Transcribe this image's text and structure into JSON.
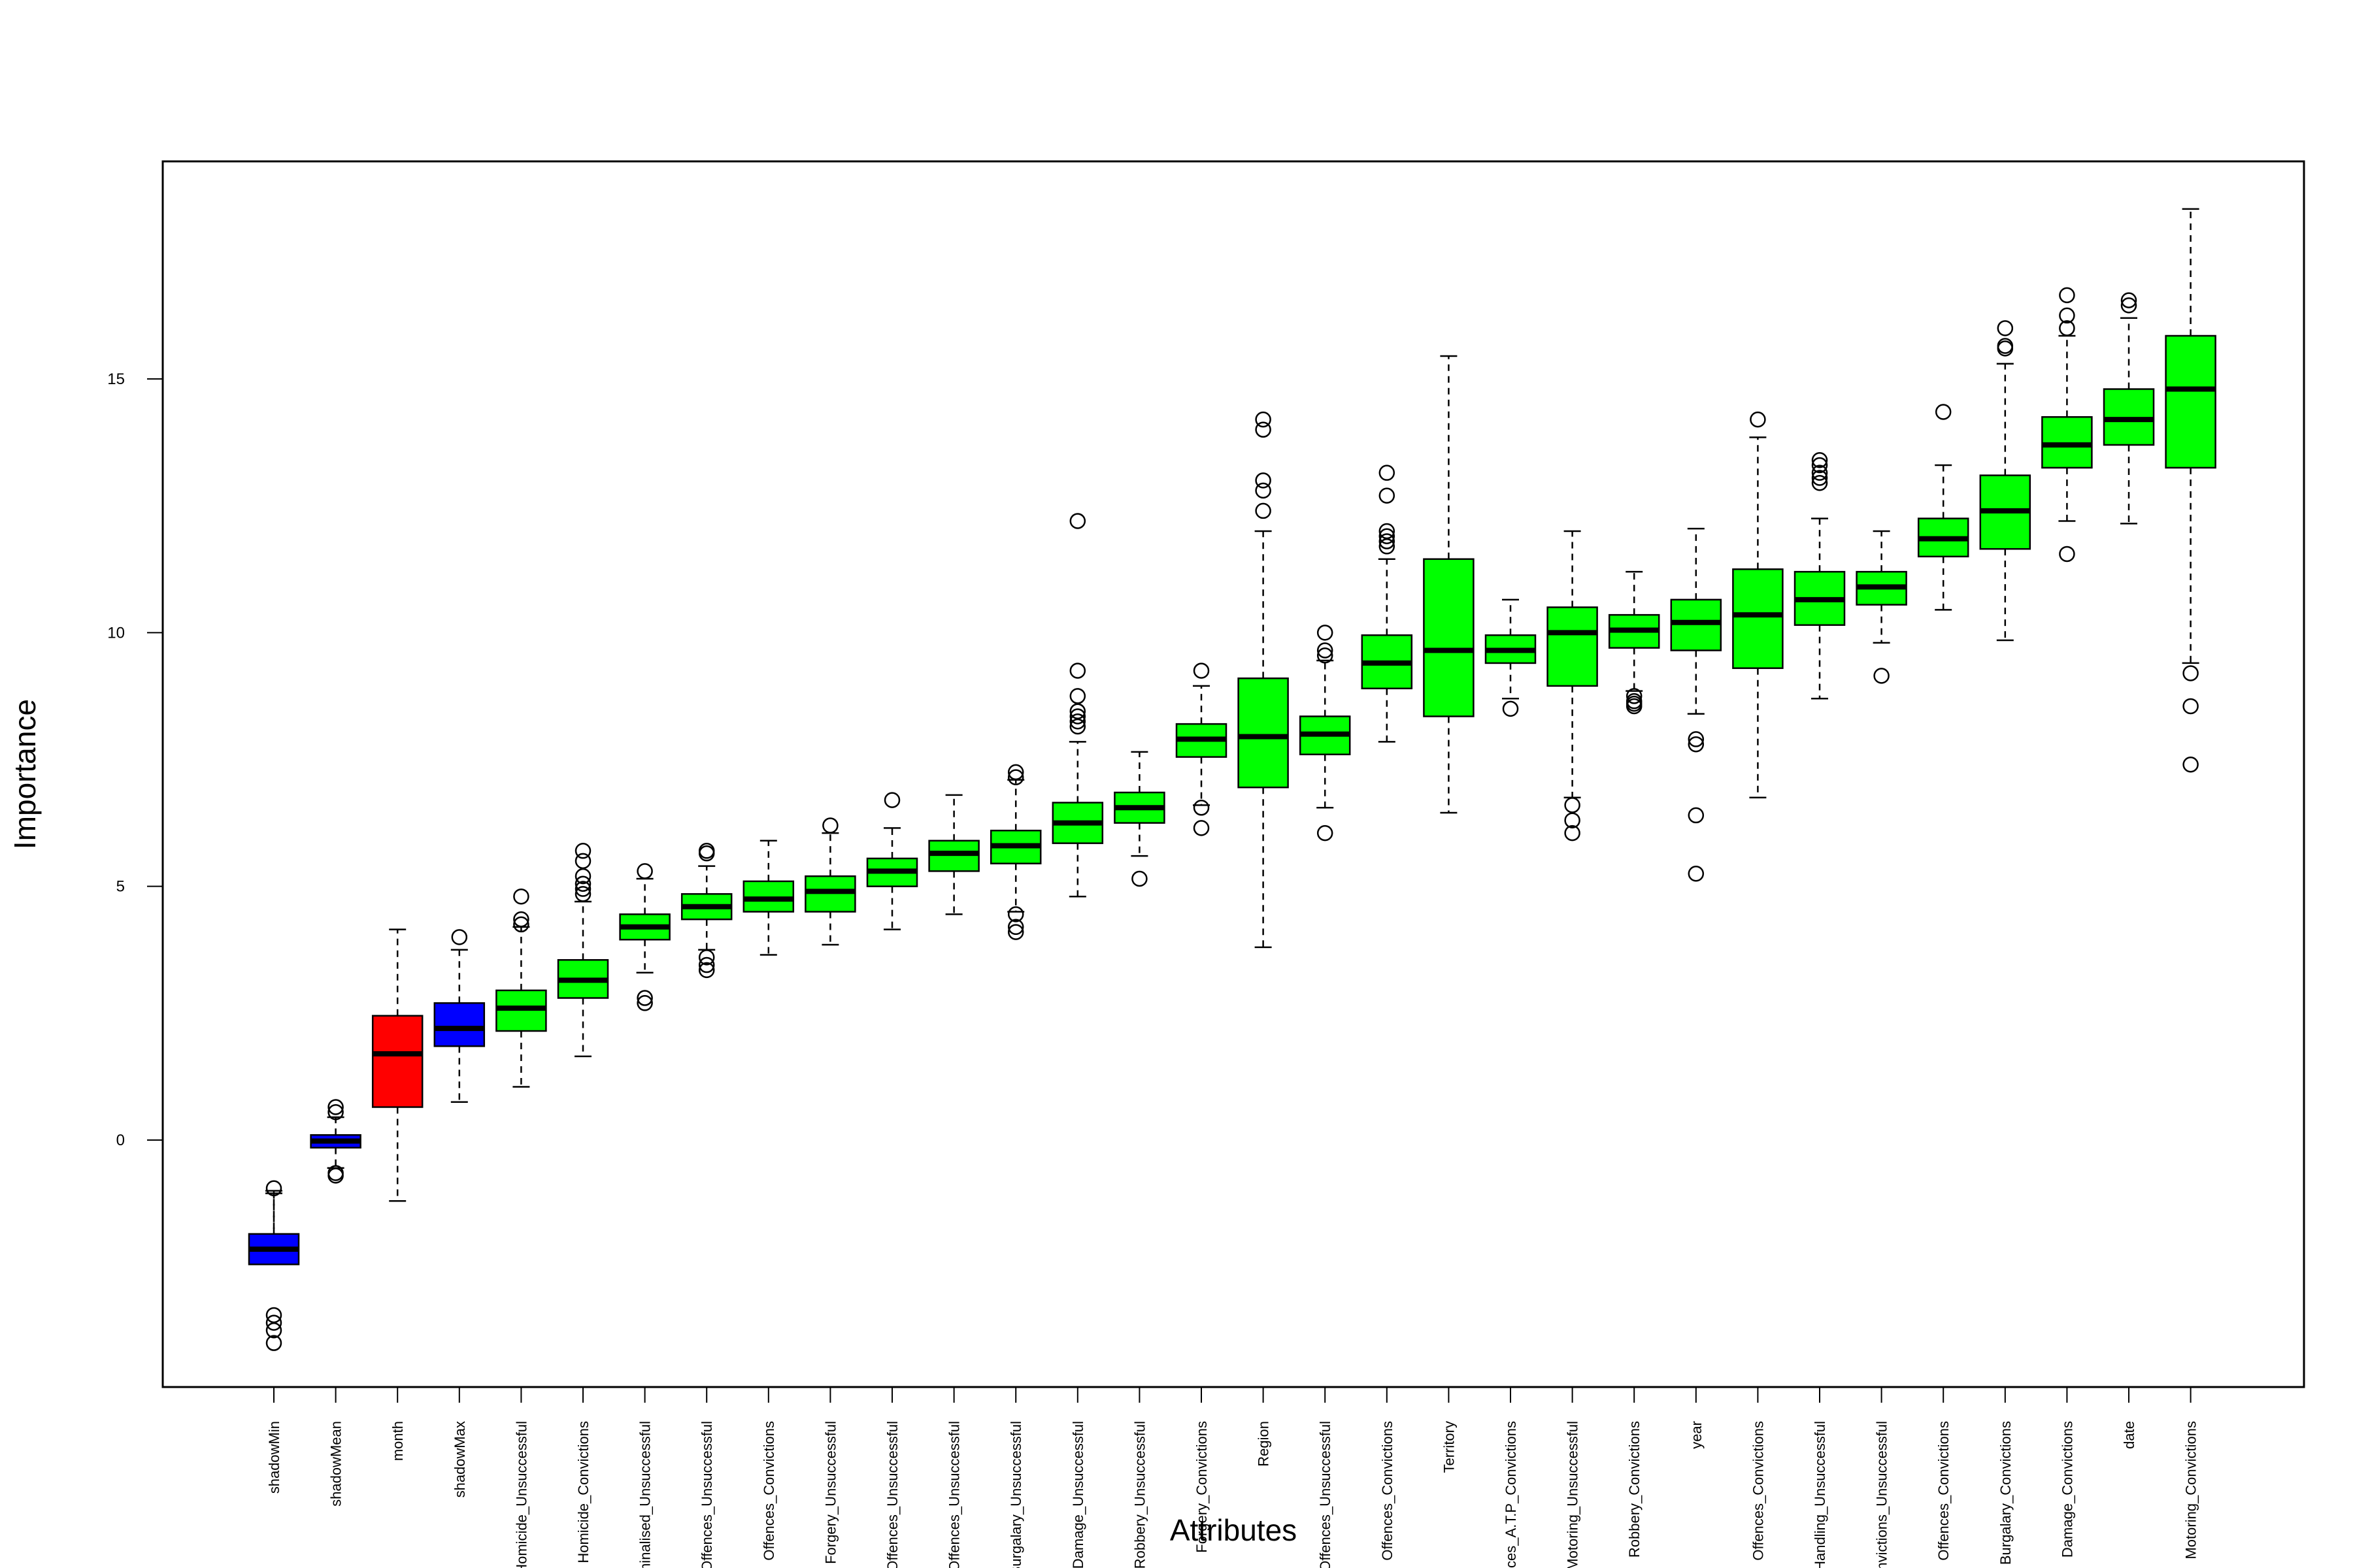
{
  "chart_data": {
    "type": "boxplot",
    "xlabel": "Attributes",
    "ylabel": "Importance",
    "ylim": [
      -5,
      19
    ],
    "yticks": [
      0,
      5,
      10,
      15
    ],
    "colors": {
      "shadow": "#0000ff",
      "rejected": "#ff0000",
      "confirmed": "#00ff00"
    },
    "boxes": [
      {
        "label": "shadowMin",
        "status": "shadow",
        "lower": -1.0,
        "q1": -2.45,
        "median": -2.15,
        "q3": -1.85,
        "upper": -1.05,
        "outliers": [
          -0.95,
          -3.45,
          -3.6,
          -3.75,
          -4.0
        ]
      },
      {
        "label": "shadowMean",
        "status": "shadow",
        "lower": -0.55,
        "q1": -0.15,
        "median": -0.02,
        "q3": 0.1,
        "upper": 0.45,
        "outliers": [
          0.55,
          0.65,
          -0.65,
          -0.7
        ]
      },
      {
        "label": "month",
        "status": "rejected",
        "lower": -1.2,
        "q1": 0.65,
        "median": 1.7,
        "q3": 2.45,
        "upper": 4.15,
        "outliers": []
      },
      {
        "label": "shadowMax",
        "status": "shadow",
        "lower": 0.75,
        "q1": 1.85,
        "median": 2.2,
        "q3": 2.7,
        "upper": 3.75,
        "outliers": [
          4.0
        ]
      },
      {
        "label": "Homicide_Unsuccessful",
        "status": "confirmed",
        "lower": 1.05,
        "q1": 2.15,
        "median": 2.6,
        "q3": 2.95,
        "upper": 4.2,
        "outliers": [
          4.25,
          4.35,
          4.8
        ]
      },
      {
        "label": "Homicide_Convictions",
        "status": "confirmed",
        "lower": 1.65,
        "q1": 2.8,
        "median": 3.15,
        "q3": 3.55,
        "upper": 4.7,
        "outliers": [
          4.85,
          4.95,
          5.05,
          5.2,
          5.5,
          5.7
        ]
      },
      {
        "label": "Criminalised_Unsuccessful",
        "status": "confirmed",
        "lower": 3.3,
        "q1": 3.95,
        "median": 4.2,
        "q3": 4.45,
        "upper": 5.15,
        "outliers": [
          2.7,
          2.8,
          5.3
        ]
      },
      {
        "label": "Offences_Unsuccessful",
        "status": "confirmed",
        "lower": 3.75,
        "q1": 4.35,
        "median": 4.6,
        "q3": 4.85,
        "upper": 5.4,
        "outliers": [
          3.35,
          3.45,
          3.6,
          5.65,
          5.7
        ]
      },
      {
        "label": "Offences_Convictions",
        "status": "confirmed",
        "lower": 3.65,
        "q1": 4.5,
        "median": 4.75,
        "q3": 5.1,
        "upper": 5.9,
        "outliers": []
      },
      {
        "label": "Forgery_Unsuccessful",
        "status": "confirmed",
        "lower": 3.85,
        "q1": 4.5,
        "median": 4.9,
        "q3": 5.2,
        "upper": 6.05,
        "outliers": [
          6.2
        ]
      },
      {
        "label": "Offences_Unsuccessful",
        "status": "confirmed",
        "lower": 4.15,
        "q1": 5.0,
        "median": 5.3,
        "q3": 5.55,
        "upper": 6.15,
        "outliers": [
          6.7
        ]
      },
      {
        "label": "Offences_Unsuccessful",
        "status": "confirmed",
        "lower": 4.45,
        "q1": 5.3,
        "median": 5.65,
        "q3": 5.9,
        "upper": 6.8,
        "outliers": []
      },
      {
        "label": "Burgalary_Unsuccessful",
        "status": "confirmed",
        "lower": 4.5,
        "q1": 5.45,
        "median": 5.8,
        "q3": 6.1,
        "upper": 7.1,
        "outliers": [
          7.15,
          7.25,
          4.45,
          4.2,
          4.1
        ]
      },
      {
        "label": "Damage_Unsuccessful",
        "status": "confirmed",
        "lower": 4.8,
        "q1": 5.85,
        "median": 6.25,
        "q3": 6.65,
        "upper": 7.85,
        "outliers": [
          8.15,
          8.25,
          8.35,
          8.45,
          8.75,
          9.25,
          12.2
        ]
      },
      {
        "label": "Robbery_Unsuccessful",
        "status": "confirmed",
        "lower": 5.6,
        "q1": 6.25,
        "median": 6.55,
        "q3": 6.85,
        "upper": 7.65,
        "outliers": [
          5.15
        ]
      },
      {
        "label": "Forgery_Convictions",
        "status": "confirmed",
        "lower": 6.6,
        "q1": 7.55,
        "median": 7.9,
        "q3": 8.2,
        "upper": 8.95,
        "outliers": [
          6.55,
          6.15,
          9.25
        ]
      },
      {
        "label": "Region",
        "status": "confirmed",
        "lower": 3.8,
        "q1": 6.95,
        "median": 7.95,
        "q3": 9.1,
        "upper": 12.0,
        "outliers": [
          12.4,
          12.8,
          13.0,
          14.0,
          14.2
        ]
      },
      {
        "label": "Offences_Unsuccessful",
        "status": "confirmed",
        "lower": 6.55,
        "q1": 7.6,
        "median": 8.0,
        "q3": 8.35,
        "upper": 9.45,
        "outliers": [
          6.05,
          9.55,
          9.65,
          10.0
        ]
      },
      {
        "label": "Offences_Convictions",
        "status": "confirmed",
        "lower": 7.85,
        "q1": 8.9,
        "median": 9.4,
        "q3": 9.95,
        "upper": 11.45,
        "outliers": [
          11.7,
          11.8,
          11.9,
          12.0,
          12.7,
          13.15
        ]
      },
      {
        "label": "Territory",
        "status": "confirmed",
        "lower": 6.45,
        "q1": 8.35,
        "median": 9.65,
        "q3": 11.45,
        "upper": 15.45,
        "outliers": []
      },
      {
        "label": "Offences_A.T.P_Convictions",
        "status": "confirmed",
        "lower": 8.7,
        "q1": 9.4,
        "median": 9.65,
        "q3": 9.95,
        "upper": 10.65,
        "outliers": [
          8.5
        ]
      },
      {
        "label": "Motoring_Unsuccessful",
        "status": "confirmed",
        "lower": 6.75,
        "q1": 8.95,
        "median": 10.0,
        "q3": 10.5,
        "upper": 12.0,
        "outliers": [
          6.6,
          6.3,
          6.05
        ]
      },
      {
        "label": "Robbery_Convictions",
        "status": "confirmed",
        "lower": 8.85,
        "q1": 9.7,
        "median": 10.05,
        "q3": 10.35,
        "upper": 11.2,
        "outliers": [
          8.55,
          8.6,
          8.65,
          8.75
        ]
      },
      {
        "label": "year",
        "status": "confirmed",
        "lower": 8.4,
        "q1": 9.65,
        "median": 10.2,
        "q3": 10.65,
        "upper": 12.05,
        "outliers": [
          7.8,
          7.9,
          6.4,
          5.25
        ]
      },
      {
        "label": "Offences_Convictions",
        "status": "confirmed",
        "lower": 6.75,
        "q1": 9.3,
        "median": 10.35,
        "q3": 11.25,
        "upper": 13.85,
        "outliers": [
          14.2
        ]
      },
      {
        "label": "Handling_Unsuccessful",
        "status": "confirmed",
        "lower": 8.7,
        "q1": 10.15,
        "median": 10.65,
        "q3": 11.2,
        "upper": 12.25,
        "outliers": [
          12.95,
          13.05,
          13.15,
          13.3,
          13.4
        ]
      },
      {
        "label": "Convictions_Unsuccessful",
        "status": "confirmed",
        "lower": 9.8,
        "q1": 10.55,
        "median": 10.9,
        "q3": 11.2,
        "upper": 12.0,
        "outliers": [
          9.15
        ]
      },
      {
        "label": "Offences_Convictions",
        "status": "confirmed",
        "lower": 10.45,
        "q1": 11.5,
        "median": 11.85,
        "q3": 12.25,
        "upper": 13.3,
        "outliers": [
          14.35
        ]
      },
      {
        "label": "Burgalary_Convictions",
        "status": "confirmed",
        "lower": 9.85,
        "q1": 11.65,
        "median": 12.4,
        "q3": 13.1,
        "upper": 15.3,
        "outliers": [
          15.6,
          15.65,
          16.0
        ]
      },
      {
        "label": "Damage_Convictions",
        "status": "confirmed",
        "lower": 12.2,
        "q1": 13.25,
        "median": 13.7,
        "q3": 14.25,
        "upper": 15.85,
        "outliers": [
          16.0,
          16.25,
          16.65,
          11.55
        ]
      },
      {
        "label": "date",
        "status": "confirmed",
        "lower": 12.15,
        "q1": 13.7,
        "median": 14.2,
        "q3": 14.8,
        "upper": 16.2,
        "outliers": [
          16.45,
          16.55
        ]
      },
      {
        "label": "Motoring_Convictions",
        "status": "confirmed",
        "lower": 9.4,
        "q1": 13.25,
        "median": 14.8,
        "q3": 15.85,
        "upper": 18.35,
        "outliers": [
          9.2,
          8.55,
          7.4
        ]
      }
    ]
  }
}
